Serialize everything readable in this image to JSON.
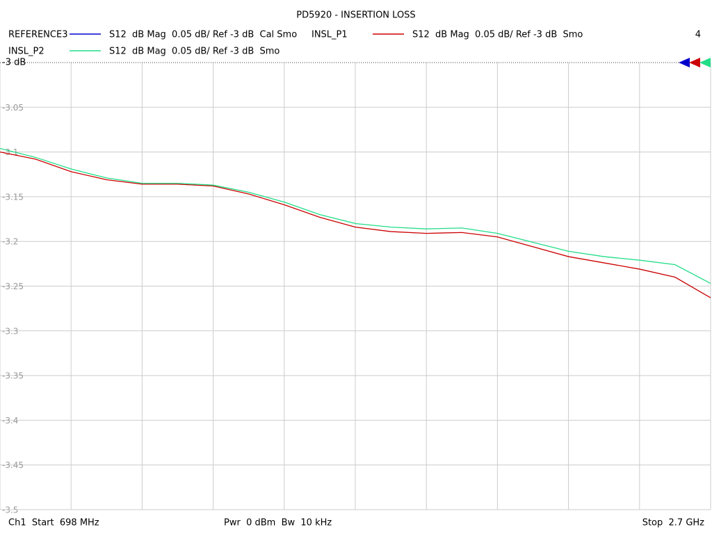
{
  "chart_data": {
    "type": "line",
    "title": "PD5920 - INSERTION LOSS",
    "trace_count": "4",
    "footer": {
      "start": "Ch1  Start  698 MHz",
      "power": "Pwr  0 dBm  Bw  10 kHz",
      "stop": "Stop  2.7 GHz"
    },
    "x": [
      698,
      798.1,
      898.2,
      998.3,
      1098.4,
      1198.5,
      1298.6,
      1398.7,
      1498.8,
      1598.9,
      1699,
      1799.1,
      1899.2,
      1999.3,
      2099.4,
      2199.5,
      2299.6,
      2399.7,
      2499.8,
      2599.9,
      2700
    ],
    "xlim": [
      698,
      2700
    ],
    "ylim": [
      -3.5,
      -3
    ],
    "yticks": [
      {
        "value": -3,
        "label": "-3 dB"
      },
      -3.05,
      -3.1,
      -3.15,
      -3.2,
      -3.25,
      -3.3,
      -3.35,
      -3.4,
      -3.45,
      -3.5
    ],
    "grid": true,
    "series": [
      {
        "name": "REFERENCE3",
        "description": "S12  dB Mag  0.05 dB/ Ref -3 dB  Cal Smo",
        "color": "#0000cc",
        "values": [
          null,
          null,
          null,
          null,
          null,
          null,
          null,
          null,
          null,
          null,
          null,
          null,
          null,
          null,
          null,
          null,
          null,
          null,
          null,
          null,
          null
        ]
      },
      {
        "name": "INSL_P1",
        "description": "S12  dB Mag  0.05 dB/ Ref -3 dB  Smo",
        "color": "#cc0000",
        "values": [
          -3.1,
          -3.108,
          -3.122,
          -3.131,
          -3.136,
          -3.136,
          -3.138,
          -3.147,
          -3.159,
          -3.173,
          -3.184,
          -3.189,
          -3.191,
          -3.19,
          -3.195,
          -3.206,
          -3.217,
          -3.224,
          -3.231,
          -3.24,
          -3.263
        ]
      },
      {
        "name": "INSL_P2",
        "description": "S12  dB Mag  0.05 dB/ Ref -3 dB  Smo",
        "color": "#22dd88",
        "values": [
          -3.096,
          -3.106,
          -3.119,
          -3.129,
          -3.135,
          -3.135,
          -3.137,
          -3.145,
          -3.156,
          -3.17,
          -3.18,
          -3.184,
          -3.186,
          -3.185,
          -3.191,
          -3.201,
          -3.211,
          -3.217,
          -3.221,
          -3.226,
          -3.247
        ]
      }
    ]
  }
}
